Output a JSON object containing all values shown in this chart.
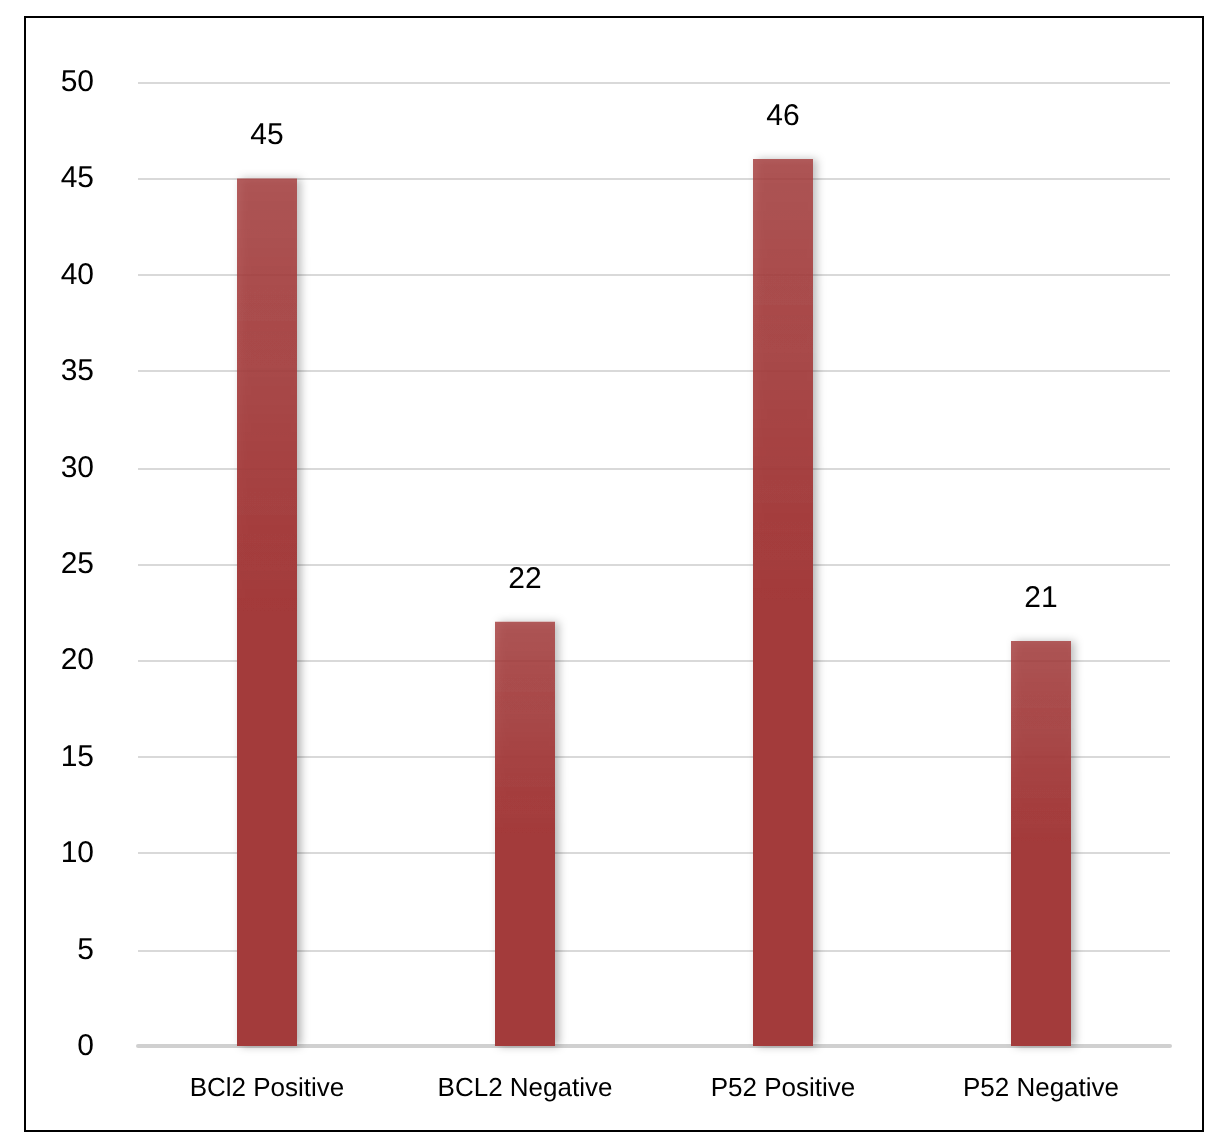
{
  "chart_data": {
    "type": "bar",
    "categories": [
      "BCl2 Positive",
      "BCL2 Negative",
      "P52 Positive",
      "P52 Negative"
    ],
    "values": [
      45,
      22,
      46,
      21
    ],
    "color": "#a33a3a",
    "ylim": [
      0,
      50
    ],
    "yticks": [
      0,
      5,
      10,
      15,
      20,
      25,
      30,
      35,
      40,
      45,
      50
    ],
    "grid": "y",
    "data_labels": true
  }
}
